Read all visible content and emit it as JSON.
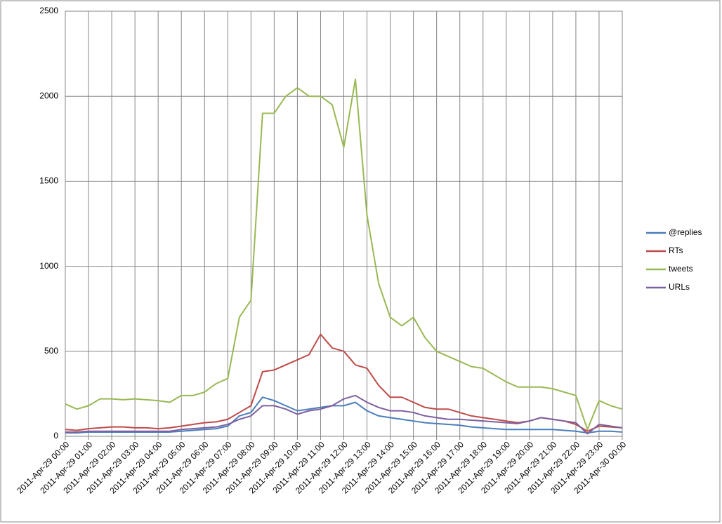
{
  "chart_data": {
    "type": "line",
    "categories": [
      "2011-Apr-29 00:00",
      null,
      "2011-Apr-29 01:00",
      null,
      "2011-Apr-29 02:00",
      null,
      "2011-Apr-29 03:00",
      null,
      "2011-Apr-29 04:00",
      null,
      "2011-Apr-29 05:00",
      null,
      "2011-Apr-29 06:00",
      null,
      "2011-Apr-29 07:00",
      null,
      "2011-Apr-29 08:00",
      null,
      "2011-Apr-29 09:00",
      null,
      "2011-Apr-29 10:00",
      null,
      "2011-Apr-29 11:00",
      null,
      "2011-Apr-29 12:00",
      null,
      "2011-Apr-29 13:00",
      null,
      "2011-Apr-29 14:00",
      null,
      "2011-Apr-29 15:00",
      null,
      "2011-Apr-29 16:00",
      null,
      "2011-Apr-29 17:00",
      null,
      "2011-Apr-29 18:00",
      null,
      "2011-Apr-29 19:00",
      null,
      "2011-Apr-29 20:00",
      null,
      "2011-Apr-29 21:00",
      null,
      "2011-Apr-29 22:00",
      null,
      "2011-Apr-29 23:00",
      null,
      "2011-Apr-30 00:00"
    ],
    "series": [
      {
        "name": "@replies",
        "color": "#4a7ebb",
        "values": [
          20,
          20,
          25,
          25,
          25,
          25,
          25,
          25,
          25,
          25,
          30,
          35,
          40,
          45,
          60,
          120,
          140,
          230,
          210,
          180,
          150,
          160,
          170,
          180,
          180,
          200,
          150,
          120,
          110,
          100,
          90,
          80,
          75,
          70,
          65,
          55,
          50,
          45,
          40,
          40,
          40,
          40,
          40,
          35,
          30,
          20,
          30,
          30,
          25
        ]
      },
      {
        "name": "RTs",
        "color": "#be4b48",
        "values": [
          40,
          35,
          45,
          50,
          55,
          55,
          50,
          50,
          45,
          50,
          60,
          70,
          80,
          85,
          100,
          140,
          180,
          380,
          390,
          420,
          450,
          480,
          600,
          520,
          500,
          420,
          400,
          300,
          230,
          230,
          200,
          170,
          160,
          160,
          140,
          120,
          110,
          100,
          90,
          80,
          90,
          110,
          100,
          90,
          70,
          30,
          60,
          55,
          50
        ]
      },
      {
        "name": "tweets",
        "color": "#98b954",
        "values": [
          190,
          160,
          180,
          220,
          220,
          215,
          220,
          215,
          210,
          200,
          240,
          240,
          260,
          310,
          340,
          700,
          800,
          1900,
          1900,
          2000,
          2050,
          2000,
          2000,
          1950,
          1700,
          2100,
          1300,
          900,
          700,
          650,
          700,
          580,
          500,
          470,
          440,
          410,
          400,
          360,
          320,
          290,
          290,
          290,
          280,
          260,
          240,
          40,
          210,
          180,
          160
        ]
      },
      {
        "name": "URLs",
        "color": "#7d60a0",
        "values": [
          25,
          25,
          30,
          30,
          30,
          30,
          30,
          30,
          30,
          30,
          40,
          45,
          50,
          55,
          70,
          100,
          120,
          180,
          180,
          160,
          130,
          150,
          160,
          180,
          220,
          240,
          200,
          170,
          150,
          150,
          140,
          120,
          110,
          100,
          100,
          95,
          90,
          85,
          80,
          75,
          90,
          110,
          100,
          90,
          80,
          15,
          70,
          60,
          50
        ]
      }
    ],
    "ylim": [
      0,
      2500
    ],
    "yticks": [
      0,
      500,
      1000,
      1500,
      2000,
      2500
    ],
    "grid": true,
    "legend": "right"
  }
}
